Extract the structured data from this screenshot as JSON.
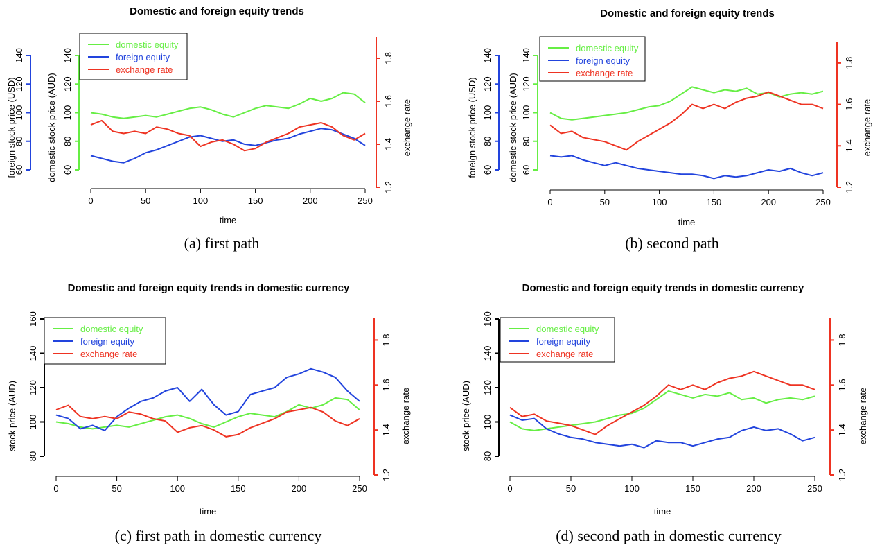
{
  "figure": {
    "captions": [
      "(a) first path",
      "(b) second path",
      "(c) first path in domestic currency",
      "(d) second path in domestic currency"
    ]
  },
  "colors": {
    "domestic": "#66ee44",
    "foreign": "#2244dd",
    "fx": "#ee3322",
    "axis": "#000000"
  },
  "chart_data": [
    {
      "type": "line",
      "title": "Domestic and foreign equity trends",
      "caption": "(a) first path",
      "xlabel": "time",
      "xlim": [
        0,
        250
      ],
      "xticks": [
        "0",
        "50",
        "100",
        "150",
        "200",
        "250"
      ],
      "y_axes": [
        {
          "label": "foreign stock price (USD)",
          "ylim": [
            60,
            140
          ],
          "ticks": [
            "60",
            "80",
            "100",
            "120",
            "140"
          ],
          "color": "#2244dd",
          "series": "foreign equity"
        },
        {
          "label": "domestic stock price (AUD)",
          "ylim": [
            60,
            140
          ],
          "ticks": [
            "60",
            "80",
            "100",
            "120",
            "140"
          ],
          "color": "#66ee44",
          "series": "domestic equity"
        }
      ],
      "y_right": {
        "label": "exchange rate",
        "ylim": [
          1.2,
          1.9
        ],
        "ticks": [
          "1.2",
          "1.4",
          "1.6",
          "1.8"
        ],
        "color": "#ee3322"
      },
      "legend": [
        "domestic equity",
        "foreign equity",
        "exchange rate"
      ],
      "legend_position": "top-left",
      "series": [
        {
          "name": "domestic equity",
          "axis": "left",
          "x": [
            0,
            10,
            20,
            30,
            40,
            50,
            60,
            70,
            80,
            90,
            100,
            110,
            120,
            130,
            140,
            150,
            160,
            170,
            180,
            190,
            200,
            210,
            220,
            230,
            240,
            250
          ],
          "values": [
            100,
            99,
            97,
            96,
            97,
            98,
            97,
            99,
            101,
            103,
            104,
            102,
            99,
            97,
            100,
            103,
            105,
            104,
            103,
            106,
            110,
            108,
            110,
            114,
            113,
            107
          ]
        },
        {
          "name": "foreign equity",
          "axis": "left",
          "x": [
            0,
            10,
            20,
            30,
            40,
            50,
            60,
            70,
            80,
            90,
            100,
            110,
            120,
            130,
            140,
            150,
            160,
            170,
            180,
            190,
            200,
            210,
            220,
            230,
            240,
            250
          ],
          "values": [
            70,
            68,
            66,
            65,
            68,
            72,
            74,
            77,
            80,
            83,
            84,
            82,
            80,
            81,
            78,
            77,
            79,
            81,
            82,
            85,
            87,
            89,
            88,
            85,
            82,
            77
          ]
        },
        {
          "name": "exchange rate",
          "axis": "right",
          "x": [
            0,
            10,
            20,
            30,
            40,
            50,
            60,
            70,
            80,
            90,
            100,
            110,
            120,
            130,
            140,
            150,
            160,
            170,
            180,
            190,
            200,
            210,
            220,
            230,
            240,
            250
          ],
          "values": [
            1.49,
            1.51,
            1.46,
            1.45,
            1.46,
            1.45,
            1.48,
            1.47,
            1.45,
            1.44,
            1.39,
            1.41,
            1.42,
            1.4,
            1.37,
            1.38,
            1.41,
            1.43,
            1.45,
            1.48,
            1.49,
            1.5,
            1.48,
            1.44,
            1.42,
            1.45
          ]
        }
      ]
    },
    {
      "type": "line",
      "title": "Domestic and foreign equity trends",
      "caption": "(b) second path",
      "xlabel": "time",
      "xlim": [
        0,
        250
      ],
      "xticks": [
        "0",
        "50",
        "100",
        "150",
        "200",
        "250"
      ],
      "y_axes": [
        {
          "label": "foreign stock price (USD)",
          "ylim": [
            60,
            140
          ],
          "ticks": [
            "60",
            "80",
            "100",
            "120",
            "140"
          ],
          "color": "#2244dd",
          "series": "foreign equity"
        },
        {
          "label": "domestic stock price (AUD)",
          "ylim": [
            60,
            140
          ],
          "ticks": [
            "60",
            "80",
            "100",
            "120",
            "140"
          ],
          "color": "#66ee44",
          "series": "domestic equity"
        }
      ],
      "y_right": {
        "label": "exchange rate",
        "ylim": [
          1.2,
          1.9
        ],
        "ticks": [
          "1.2",
          "1.4",
          "1.6",
          "1.8"
        ],
        "color": "#ee3322"
      },
      "legend": [
        "domestic equity",
        "foreign equity",
        "exchange rate"
      ],
      "legend_position": "top-left",
      "series": [
        {
          "name": "domestic equity",
          "axis": "left",
          "x": [
            0,
            10,
            20,
            30,
            40,
            50,
            60,
            70,
            80,
            90,
            100,
            110,
            120,
            130,
            140,
            150,
            160,
            170,
            180,
            190,
            200,
            210,
            220,
            230,
            240,
            250
          ],
          "values": [
            100,
            96,
            95,
            96,
            97,
            98,
            99,
            100,
            102,
            104,
            105,
            108,
            113,
            118,
            116,
            114,
            116,
            115,
            117,
            113,
            114,
            111,
            113,
            114,
            113,
            115
          ]
        },
        {
          "name": "foreign equity",
          "axis": "left",
          "x": [
            0,
            10,
            20,
            30,
            40,
            50,
            60,
            70,
            80,
            90,
            100,
            110,
            120,
            130,
            140,
            150,
            160,
            170,
            180,
            190,
            200,
            210,
            220,
            230,
            240,
            250
          ],
          "values": [
            70,
            69,
            70,
            67,
            65,
            63,
            65,
            63,
            61,
            60,
            59,
            58,
            57,
            57,
            56,
            54,
            56,
            55,
            56,
            58,
            60,
            59,
            61,
            58,
            56,
            58
          ]
        },
        {
          "name": "exchange rate",
          "axis": "right",
          "x": [
            0,
            10,
            20,
            30,
            40,
            50,
            60,
            70,
            80,
            90,
            100,
            110,
            120,
            130,
            140,
            150,
            160,
            170,
            180,
            190,
            200,
            210,
            220,
            230,
            240,
            250
          ],
          "values": [
            1.5,
            1.46,
            1.47,
            1.44,
            1.43,
            1.42,
            1.4,
            1.38,
            1.42,
            1.45,
            1.48,
            1.51,
            1.55,
            1.6,
            1.58,
            1.6,
            1.58,
            1.61,
            1.63,
            1.64,
            1.66,
            1.64,
            1.62,
            1.6,
            1.6,
            1.58
          ]
        }
      ]
    },
    {
      "type": "line",
      "title": "Domestic and foreign equity trends in domestic currency",
      "caption": "(c) first path in domestic currency",
      "xlabel": "time",
      "xlim": [
        0,
        250
      ],
      "xticks": [
        "0",
        "50",
        "100",
        "150",
        "200",
        "250"
      ],
      "y_axes": [
        {
          "label": "stock price (AUD)",
          "ylim": [
            80,
            160
          ],
          "ticks": [
            "80",
            "100",
            "120",
            "140",
            "160"
          ],
          "color": "#000000",
          "series": ""
        }
      ],
      "y_right": {
        "label": "exchange rate",
        "ylim": [
          1.2,
          1.9
        ],
        "ticks": [
          "1.2",
          "1.4",
          "1.6",
          "1.8"
        ],
        "color": "#ee3322"
      },
      "legend": [
        "domestic equity",
        "foreign equity",
        "exchange rate"
      ],
      "legend_position": "top-left",
      "series": [
        {
          "name": "domestic equity",
          "axis": "left",
          "x": [
            0,
            10,
            20,
            30,
            40,
            50,
            60,
            70,
            80,
            90,
            100,
            110,
            120,
            130,
            140,
            150,
            160,
            170,
            180,
            190,
            200,
            210,
            220,
            230,
            240,
            250
          ],
          "values": [
            100,
            99,
            97,
            96,
            97,
            98,
            97,
            99,
            101,
            103,
            104,
            102,
            99,
            97,
            100,
            103,
            105,
            104,
            103,
            106,
            110,
            108,
            110,
            114,
            113,
            107
          ]
        },
        {
          "name": "foreign equity",
          "axis": "left",
          "x": [
            0,
            10,
            20,
            30,
            40,
            50,
            60,
            70,
            80,
            90,
            100,
            110,
            120,
            130,
            140,
            150,
            160,
            170,
            180,
            190,
            200,
            210,
            220,
            230,
            240,
            250
          ],
          "values": [
            104,
            102,
            96,
            98,
            95,
            103,
            108,
            112,
            114,
            118,
            120,
            112,
            119,
            110,
            104,
            106,
            116,
            118,
            120,
            126,
            128,
            131,
            129,
            126,
            118,
            112
          ]
        },
        {
          "name": "exchange rate",
          "axis": "right",
          "x": [
            0,
            10,
            20,
            30,
            40,
            50,
            60,
            70,
            80,
            90,
            100,
            110,
            120,
            130,
            140,
            150,
            160,
            170,
            180,
            190,
            200,
            210,
            220,
            230,
            240,
            250
          ],
          "values": [
            1.49,
            1.51,
            1.46,
            1.45,
            1.46,
            1.45,
            1.48,
            1.47,
            1.45,
            1.44,
            1.39,
            1.41,
            1.42,
            1.4,
            1.37,
            1.38,
            1.41,
            1.43,
            1.45,
            1.48,
            1.49,
            1.5,
            1.48,
            1.44,
            1.42,
            1.45
          ]
        }
      ]
    },
    {
      "type": "line",
      "title": "Domestic and foreign equity trends in domestic currency",
      "caption": "(d) second path in domestic currency",
      "xlabel": "time",
      "xlim": [
        0,
        250
      ],
      "xticks": [
        "0",
        "50",
        "100",
        "150",
        "200",
        "250"
      ],
      "y_axes": [
        {
          "label": "stock price (AUD)",
          "ylim": [
            80,
            160
          ],
          "ticks": [
            "80",
            "100",
            "120",
            "140",
            "160"
          ],
          "color": "#000000",
          "series": ""
        }
      ],
      "y_right": {
        "label": "exchange rate",
        "ylim": [
          1.2,
          1.9
        ],
        "ticks": [
          "1.2",
          "1.4",
          "1.6",
          "1.8"
        ],
        "color": "#ee3322"
      },
      "legend": [
        "domestic equity",
        "foreign equity",
        "exchange rate"
      ],
      "legend_position": "top-left",
      "series": [
        {
          "name": "domestic equity",
          "axis": "left",
          "x": [
            0,
            10,
            20,
            30,
            40,
            50,
            60,
            70,
            80,
            90,
            100,
            110,
            120,
            130,
            140,
            150,
            160,
            170,
            180,
            190,
            200,
            210,
            220,
            230,
            240,
            250
          ],
          "values": [
            100,
            96,
            95,
            96,
            97,
            98,
            99,
            100,
            102,
            104,
            105,
            108,
            113,
            118,
            116,
            114,
            116,
            115,
            117,
            113,
            114,
            111,
            113,
            114,
            113,
            115
          ]
        },
        {
          "name": "foreign equity",
          "axis": "left",
          "x": [
            0,
            10,
            20,
            30,
            40,
            50,
            60,
            70,
            80,
            90,
            100,
            110,
            120,
            130,
            140,
            150,
            160,
            170,
            180,
            190,
            200,
            210,
            220,
            230,
            240,
            250
          ],
          "values": [
            104,
            101,
            102,
            96,
            93,
            91,
            90,
            88,
            87,
            86,
            87,
            85,
            89,
            88,
            88,
            86,
            88,
            90,
            91,
            95,
            97,
            95,
            96,
            93,
            89,
            91
          ]
        },
        {
          "name": "exchange rate",
          "axis": "right",
          "x": [
            0,
            10,
            20,
            30,
            40,
            50,
            60,
            70,
            80,
            90,
            100,
            110,
            120,
            130,
            140,
            150,
            160,
            170,
            180,
            190,
            200,
            210,
            220,
            230,
            240,
            250
          ],
          "values": [
            1.5,
            1.46,
            1.47,
            1.44,
            1.43,
            1.42,
            1.4,
            1.38,
            1.42,
            1.45,
            1.48,
            1.51,
            1.55,
            1.6,
            1.58,
            1.6,
            1.58,
            1.61,
            1.63,
            1.64,
            1.66,
            1.64,
            1.62,
            1.6,
            1.6,
            1.58
          ]
        }
      ]
    }
  ]
}
